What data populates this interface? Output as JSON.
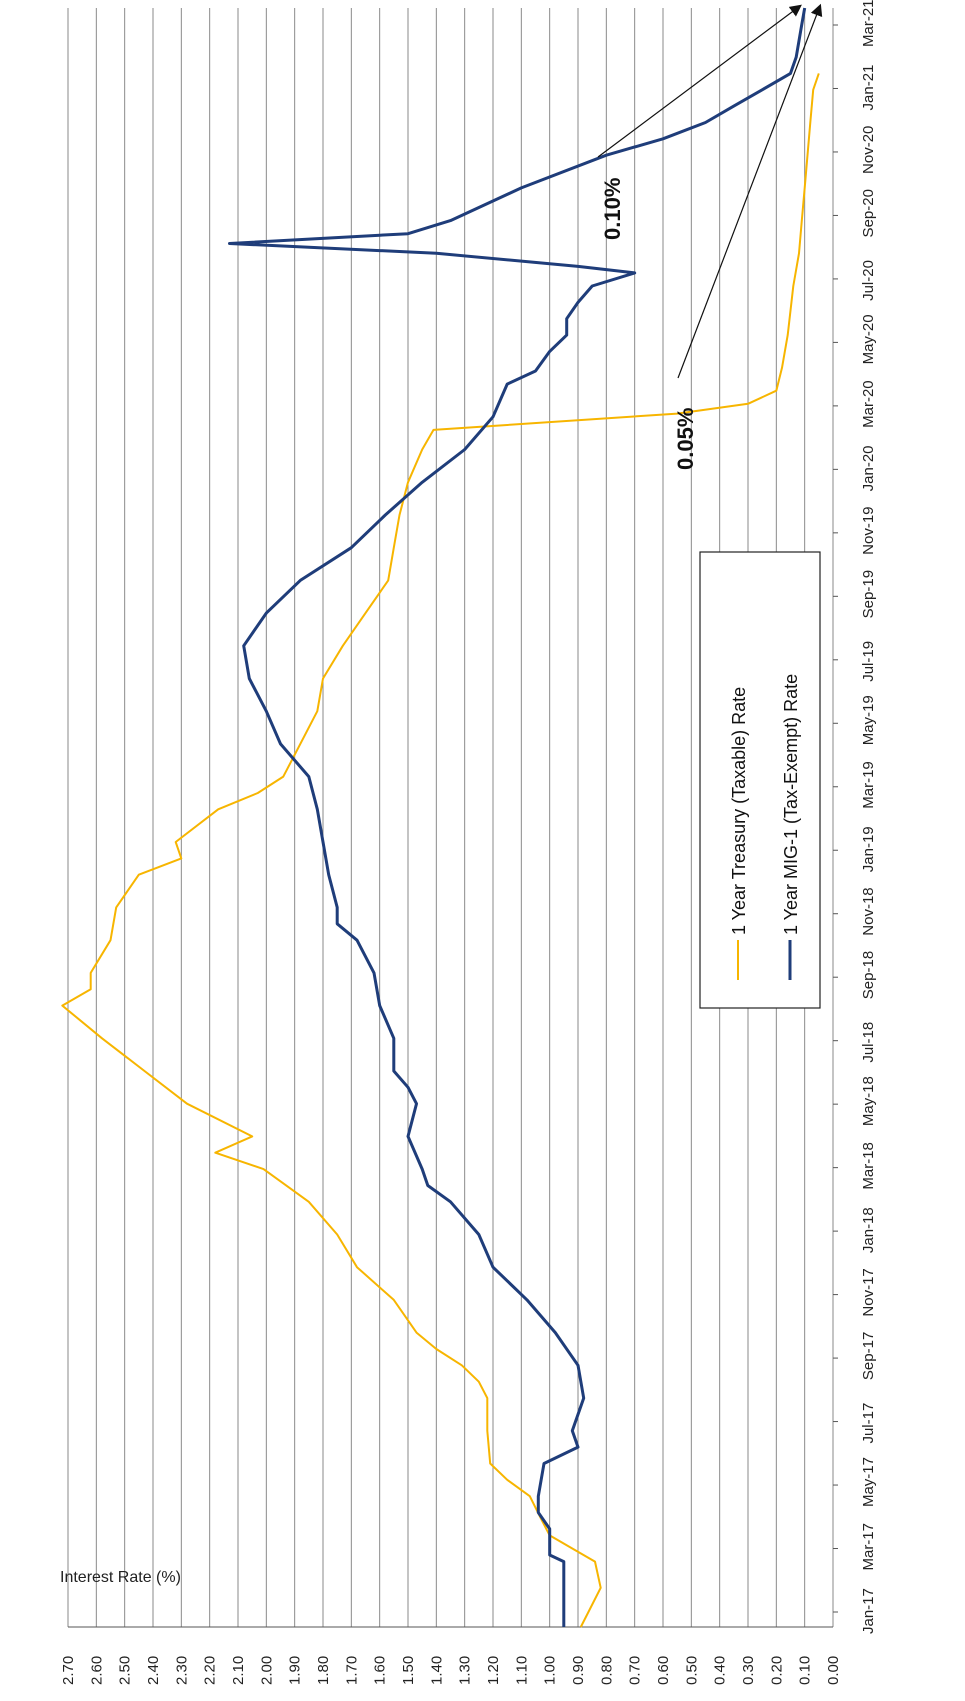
{
  "chart_data": {
    "type": "line",
    "orientation": "rotated-90-clockwise",
    "ylabel": "Interest Rate (%)",
    "xlabel": "",
    "ylim": [
      0,
      2.7
    ],
    "y_ticks": [
      "0.00",
      "0.10",
      "0.20",
      "0.30",
      "0.40",
      "0.50",
      "0.60",
      "0.70",
      "0.80",
      "0.90",
      "1.00",
      "1.10",
      "1.20",
      "1.30",
      "1.40",
      "1.50",
      "1.60",
      "1.70",
      "1.80",
      "1.90",
      "2.00",
      "2.10",
      "2.20",
      "2.30",
      "2.40",
      "2.50",
      "2.60",
      "2.70"
    ],
    "x_ticks": [
      "Jan-17",
      "Mar-17",
      "May-17",
      "Jul-17",
      "Sep-17",
      "Nov-17",
      "Jan-18",
      "Mar-18",
      "May-18",
      "Jul-18",
      "Sep-18",
      "Nov-18",
      "Jan-19",
      "Mar-19",
      "May-19",
      "Jul-19",
      "Sep-19",
      "Nov-19",
      "Jan-20",
      "Mar-20",
      "May-20",
      "Jul-20",
      "Sep-20",
      "Nov-20",
      "Jan-21",
      "Mar-21"
    ],
    "grid": true,
    "legend_position": "center-right",
    "series": [
      {
        "name": "1 Year Treasury (Taxable) Rate",
        "color": "#F7B500",
        "points": [
          [
            0,
            0.89
          ],
          [
            1.2,
            0.82
          ],
          [
            2,
            0.84
          ],
          [
            2.4,
            0.92
          ],
          [
            2.8,
            1.0
          ],
          [
            3.3,
            1.03
          ],
          [
            4,
            1.07
          ],
          [
            4.5,
            1.15
          ],
          [
            5,
            1.21
          ],
          [
            6,
            1.22
          ],
          [
            7,
            1.22
          ],
          [
            7.5,
            1.25
          ],
          [
            8,
            1.31
          ],
          [
            8.5,
            1.4
          ],
          [
            9,
            1.47
          ],
          [
            10,
            1.55
          ],
          [
            11,
            1.68
          ],
          [
            12,
            1.75
          ],
          [
            13,
            1.85
          ],
          [
            14,
            2.01
          ],
          [
            14.5,
            2.18
          ],
          [
            15,
            2.05
          ],
          [
            16,
            2.28
          ],
          [
            17,
            2.43
          ],
          [
            18,
            2.58
          ],
          [
            19,
            2.72
          ],
          [
            19.5,
            2.62
          ],
          [
            20,
            2.62
          ],
          [
            21,
            2.55
          ],
          [
            22,
            2.53
          ],
          [
            23,
            2.45
          ],
          [
            23.5,
            2.3
          ],
          [
            24,
            2.32
          ],
          [
            25,
            2.17
          ],
          [
            25.5,
            2.03
          ],
          [
            26,
            1.94
          ],
          [
            27,
            1.88
          ],
          [
            28,
            1.82
          ],
          [
            29,
            1.8
          ],
          [
            30,
            1.73
          ],
          [
            31,
            1.65
          ],
          [
            32,
            1.57
          ],
          [
            33,
            1.55
          ],
          [
            34,
            1.53
          ],
          [
            35,
            1.5
          ],
          [
            36,
            1.45
          ],
          [
            36.6,
            1.41
          ],
          [
            37.1,
            0.55
          ],
          [
            37.4,
            0.3
          ],
          [
            37.8,
            0.2
          ],
          [
            38.5,
            0.18
          ],
          [
            39.5,
            0.16
          ],
          [
            41,
            0.14
          ],
          [
            42,
            0.12
          ],
          [
            43,
            0.11
          ],
          [
            44,
            0.1
          ],
          [
            45,
            0.09
          ],
          [
            46,
            0.08
          ],
          [
            47,
            0.07
          ],
          [
            47.5,
            0.05
          ]
        ]
      },
      {
        "name": "1 Year MIG-1 (Tax-Exempt) Rate",
        "color": "#1F3D7A",
        "points": [
          [
            0,
            0.95
          ],
          [
            2,
            0.95
          ],
          [
            2.2,
            1.0
          ],
          [
            3,
            1.0
          ],
          [
            3.5,
            1.04
          ],
          [
            4,
            1.04
          ],
          [
            5,
            1.02
          ],
          [
            5.5,
            0.9
          ],
          [
            6,
            0.92
          ],
          [
            7,
            0.88
          ],
          [
            8,
            0.9
          ],
          [
            9,
            0.98
          ],
          [
            10,
            1.08
          ],
          [
            11,
            1.2
          ],
          [
            12,
            1.25
          ],
          [
            13,
            1.35
          ],
          [
            13.5,
            1.43
          ],
          [
            14,
            1.45
          ],
          [
            15,
            1.5
          ],
          [
            16,
            1.47
          ],
          [
            16.5,
            1.5
          ],
          [
            17,
            1.55
          ],
          [
            18,
            1.55
          ],
          [
            19,
            1.6
          ],
          [
            20,
            1.62
          ],
          [
            21,
            1.68
          ],
          [
            21.5,
            1.75
          ],
          [
            22,
            1.75
          ],
          [
            23,
            1.78
          ],
          [
            24,
            1.8
          ],
          [
            25,
            1.82
          ],
          [
            26,
            1.85
          ],
          [
            27,
            1.95
          ],
          [
            28,
            2.0
          ],
          [
            29,
            2.06
          ],
          [
            30,
            2.08
          ],
          [
            31,
            2.0
          ],
          [
            32,
            1.88
          ],
          [
            33,
            1.7
          ],
          [
            34,
            1.58
          ],
          [
            35,
            1.45
          ],
          [
            36,
            1.3
          ],
          [
            37,
            1.2
          ],
          [
            38,
            1.15
          ],
          [
            38.4,
            1.05
          ],
          [
            39,
            1.0
          ],
          [
            39.5,
            0.94
          ],
          [
            40,
            0.94
          ],
          [
            40.5,
            0.9
          ],
          [
            41,
            0.85
          ],
          [
            41.4,
            0.7
          ],
          [
            41.6,
            0.9
          ],
          [
            42,
            1.4
          ],
          [
            42.3,
            2.13
          ],
          [
            42.6,
            1.5
          ],
          [
            43,
            1.35
          ],
          [
            44,
            1.1
          ],
          [
            45,
            0.8
          ],
          [
            45.5,
            0.6
          ],
          [
            46,
            0.45
          ],
          [
            46.5,
            0.35
          ],
          [
            47,
            0.25
          ],
          [
            47.5,
            0.15
          ],
          [
            48,
            0.13
          ],
          [
            48.5,
            0.12
          ],
          [
            49,
            0.11
          ],
          [
            49.5,
            0.1
          ]
        ]
      }
    ],
    "annotations": [
      "0.10%",
      "0.05%"
    ]
  }
}
